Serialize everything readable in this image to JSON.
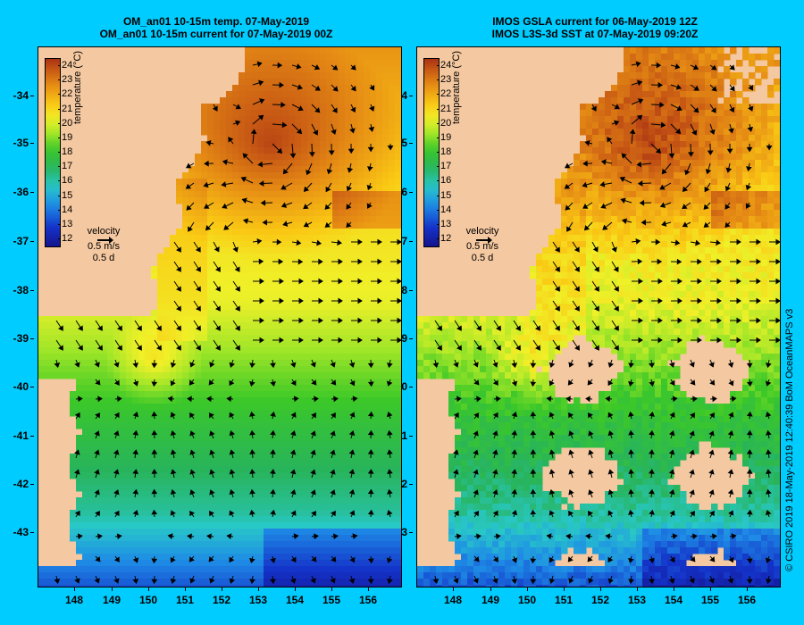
{
  "left_panel": {
    "title_line1": "OM_an01 10-15m temp. 07-May-2019",
    "title_line2": "OM_an01 10-15m current for 07-May-2019 00Z"
  },
  "right_panel": {
    "title_line1": "IMOS GSLA current for 06-May-2019 12Z",
    "title_line2": "IMOS L3S-3d SST at 07-May-2019 09:20Z"
  },
  "y_ticks": [
    "-34",
    "-35",
    "-36",
    "-37",
    "-38",
    "-39",
    "-40",
    "-41",
    "-42",
    "-43"
  ],
  "x_ticks": [
    "148",
    "149",
    "150",
    "151",
    "152",
    "153",
    "154",
    "155",
    "156"
  ],
  "colorbar": {
    "label": "temperature (°C)",
    "ticks": [
      "24",
      "23",
      "22",
      "21",
      "20",
      "19",
      "18",
      "17",
      "16",
      "15",
      "14",
      "13",
      "12"
    ],
    "min": 11.5,
    "max": 24.5
  },
  "velocity_key": {
    "label": "velocity",
    "speed": "0.5 m/s",
    "duration": "0.5 d"
  },
  "credit": "© CSIRO 2019   18-May-2019 12:40:39 BoM OceanMAPS v3",
  "colors": {
    "background": "#00ccff",
    "land": "#f4c8a0"
  }
}
